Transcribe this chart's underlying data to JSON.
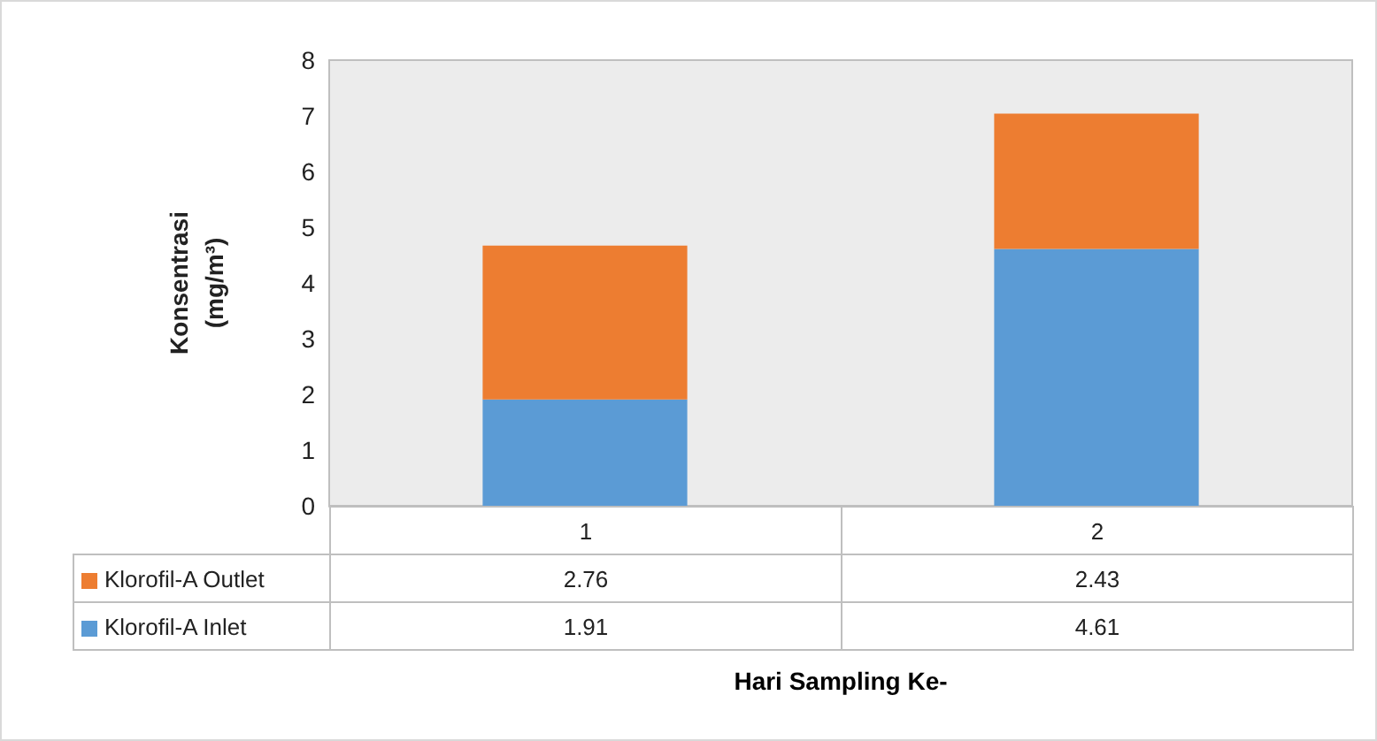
{
  "chart_data": {
    "type": "bar",
    "stacked": true,
    "xlabel": "Hari Sampling Ke-",
    "ylabel": "Konsentrasi\n(mg/m³)",
    "categories": [
      "1",
      "2"
    ],
    "series": [
      {
        "name": "Klorofil-A Inlet",
        "color": "#5b9bd5",
        "values": [
          1.91,
          4.61
        ]
      },
      {
        "name": "Klorofil-A Outlet",
        "color": "#ed7d31",
        "values": [
          2.76,
          2.43
        ]
      }
    ],
    "ylim": [
      0,
      8
    ],
    "yticks": [
      0,
      1,
      2,
      3,
      4,
      5,
      6,
      7,
      8
    ],
    "grid": false,
    "legend": "bottom",
    "data_labels": true
  }
}
